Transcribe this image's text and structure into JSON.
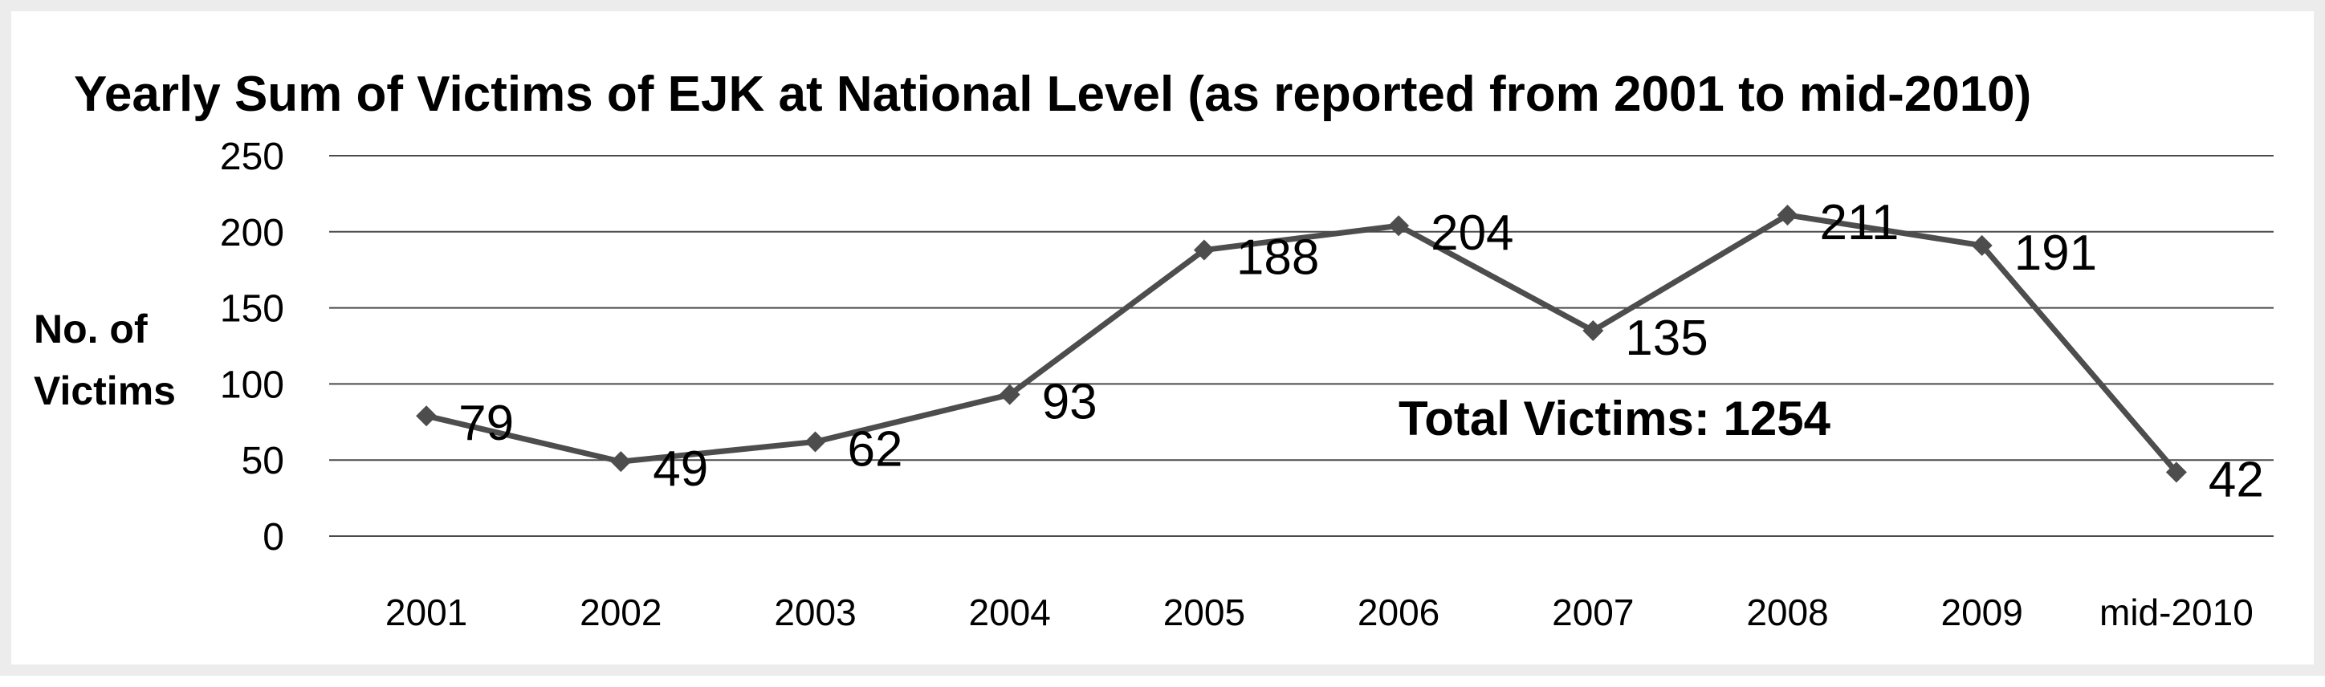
{
  "chart_data": {
    "type": "line",
    "title": "Yearly Sum of Victims of EJK at National Level (as reported from 2001 to mid-2010)",
    "ylabel_lines": [
      "No. of",
      "Victims"
    ],
    "xlabel": "",
    "categories": [
      "2001",
      "2002",
      "2003",
      "2004",
      "2005",
      "2006",
      "2007",
      "2008",
      "2009",
      "mid-2010"
    ],
    "values": [
      79,
      49,
      62,
      93,
      188,
      204,
      135,
      211,
      191,
      42
    ],
    "ylim": [
      0,
      250
    ],
    "yticks": [
      0,
      50,
      100,
      150,
      200,
      250
    ],
    "grid": true,
    "legend": "none",
    "annotation": "Total Victims: 1254",
    "line_color": "#4d4d4d",
    "marker": "diamond"
  }
}
